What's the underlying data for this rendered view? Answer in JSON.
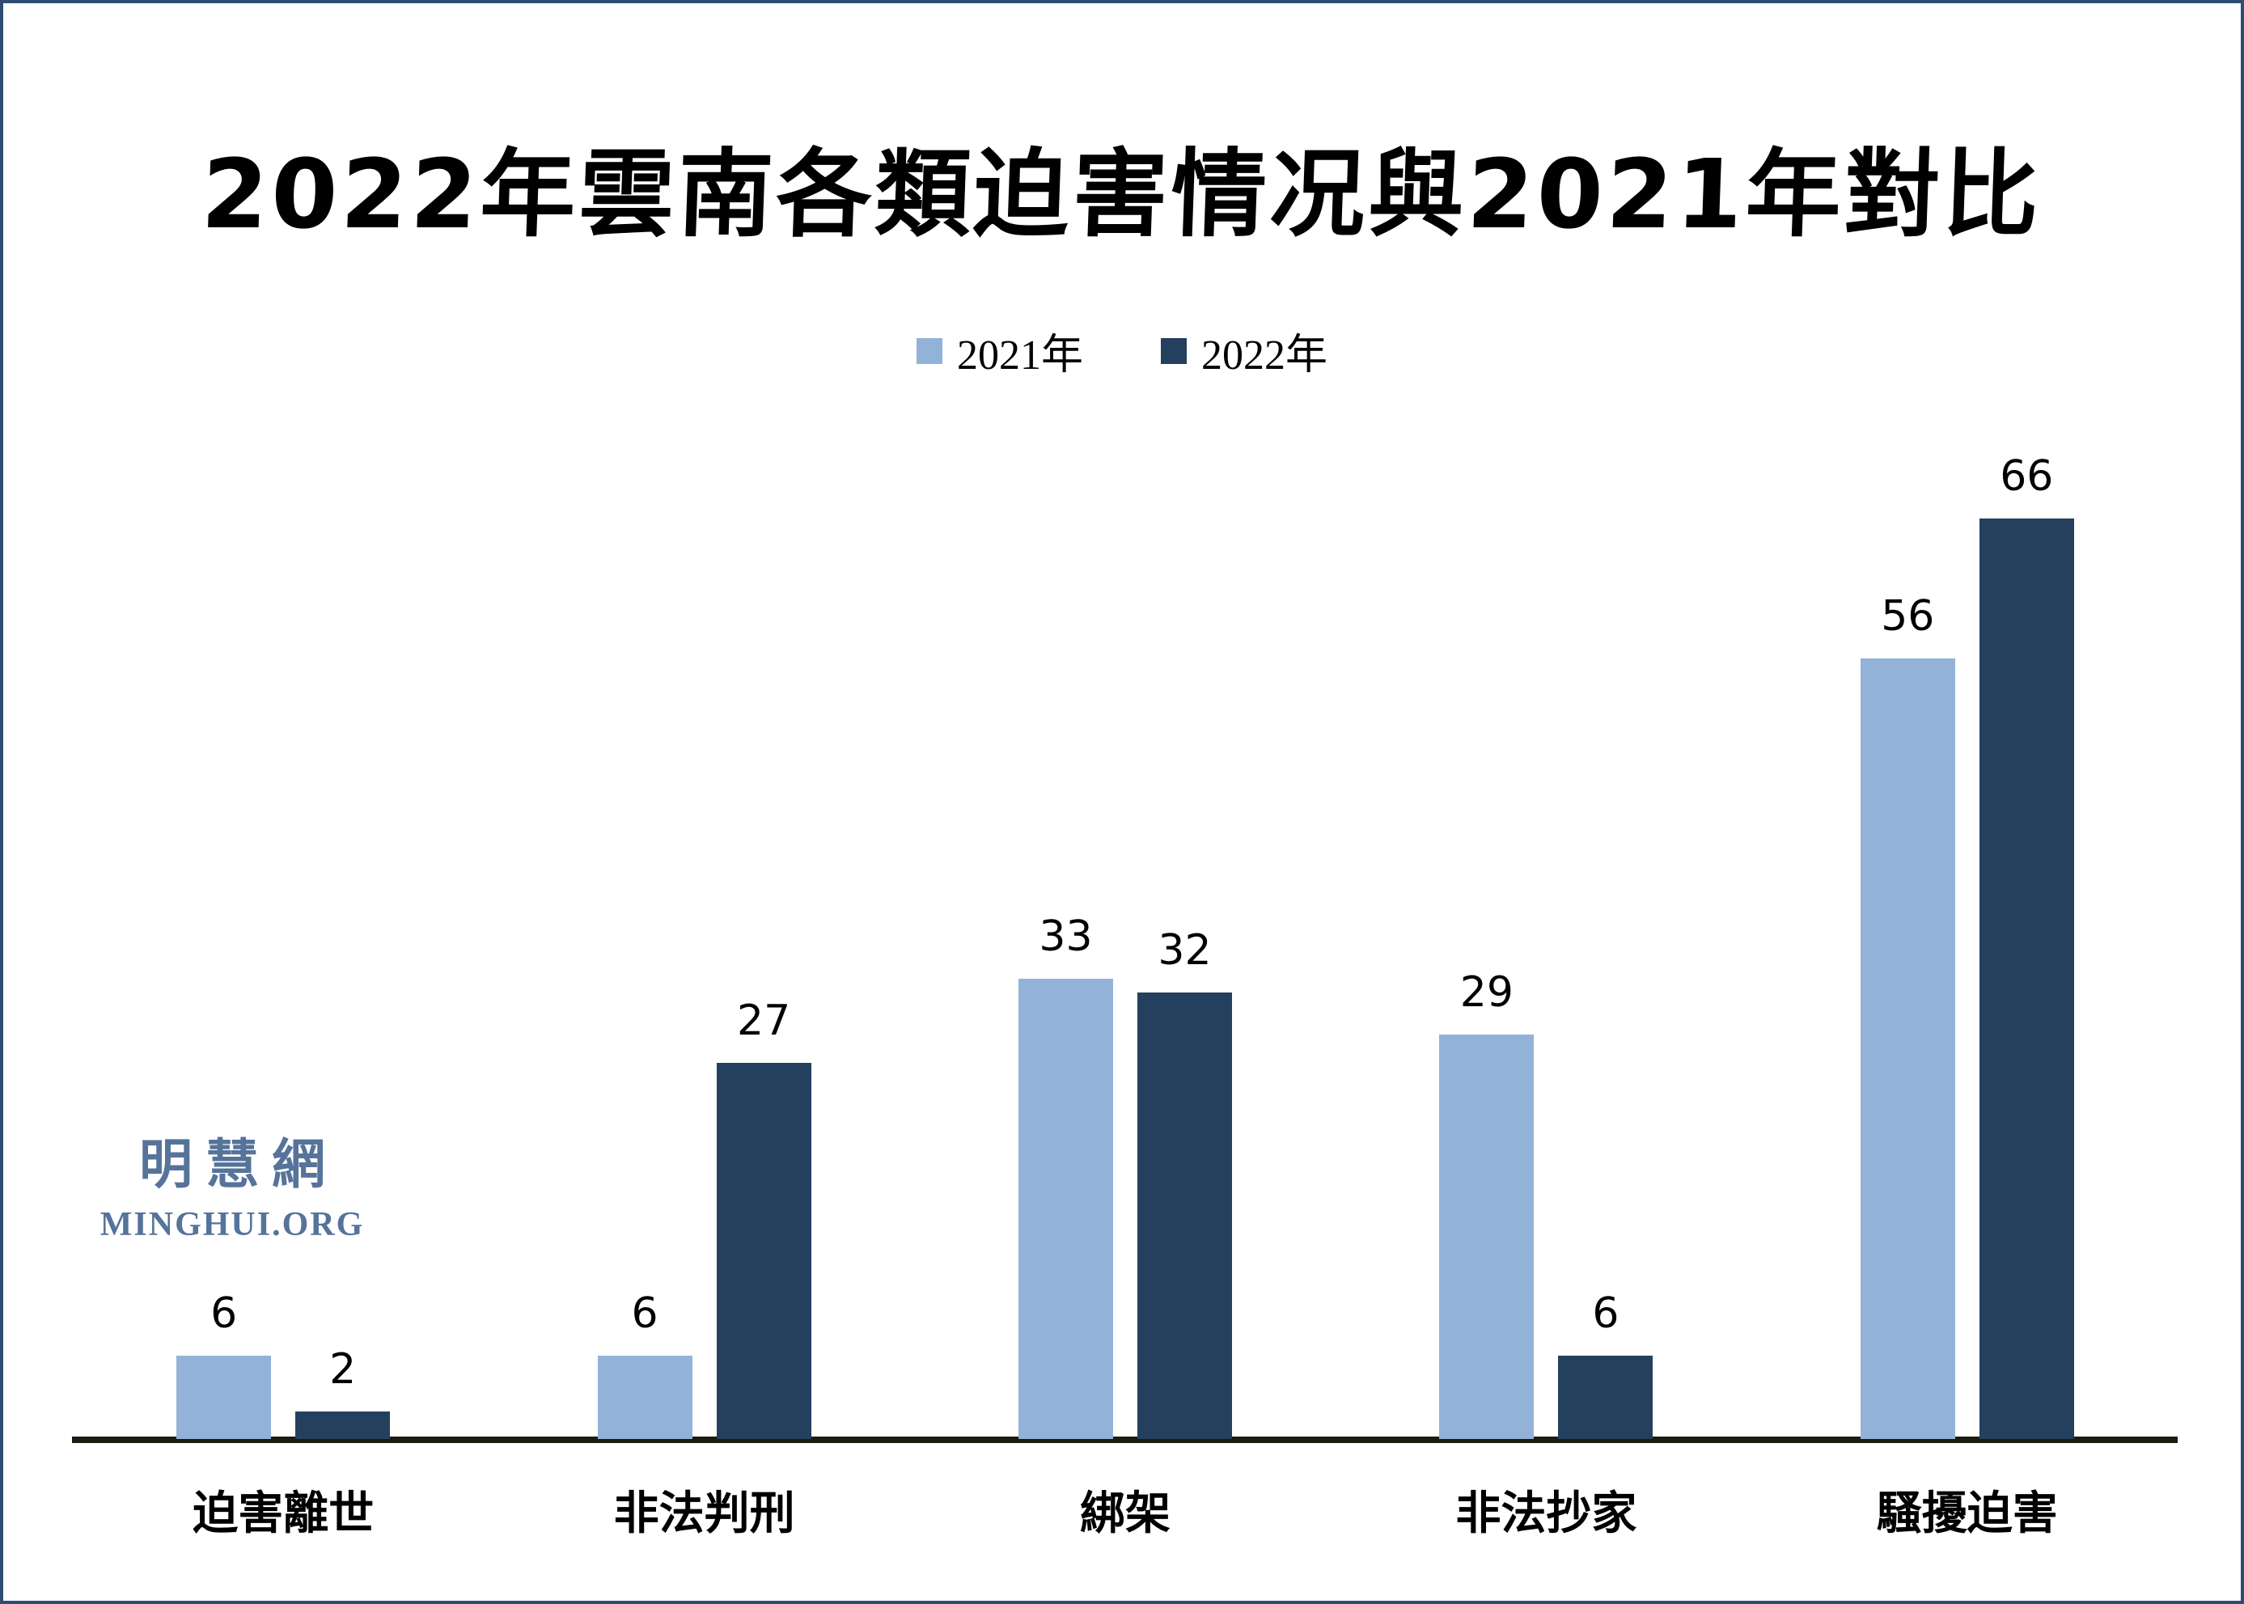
{
  "title": "2022年雲南各類迫害情况與2021年對比",
  "watermark": {
    "cjk": "明慧網",
    "latin": "MINGHUI.ORG"
  },
  "colors": {
    "series_2021": "#93B2D8",
    "series_2022": "#25405F",
    "axis": "#1E1B10",
    "watermark": "#56739A",
    "frame_border": "#2F4C72",
    "background": "#FFFFFF",
    "text": "#000000"
  },
  "chart_data": {
    "type": "bar",
    "title": "2022年雲南各類迫害情况與2021年對比",
    "categories": [
      "迫害離世",
      "非法判刑",
      "綁架",
      "非法抄家",
      "騷擾迫害"
    ],
    "series": [
      {
        "name": "2021年",
        "color": "#93B2D8",
        "values": [
          6,
          6,
          33,
          29,
          56
        ]
      },
      {
        "name": "2022年",
        "color": "#25405F",
        "values": [
          2,
          27,
          32,
          6,
          66
        ]
      }
    ],
    "xlabel": "",
    "ylabel": "",
    "ylim": [
      0,
      66
    ],
    "grid": false,
    "y_axis_shown": false,
    "legend_position": "top",
    "data_labels": true
  }
}
